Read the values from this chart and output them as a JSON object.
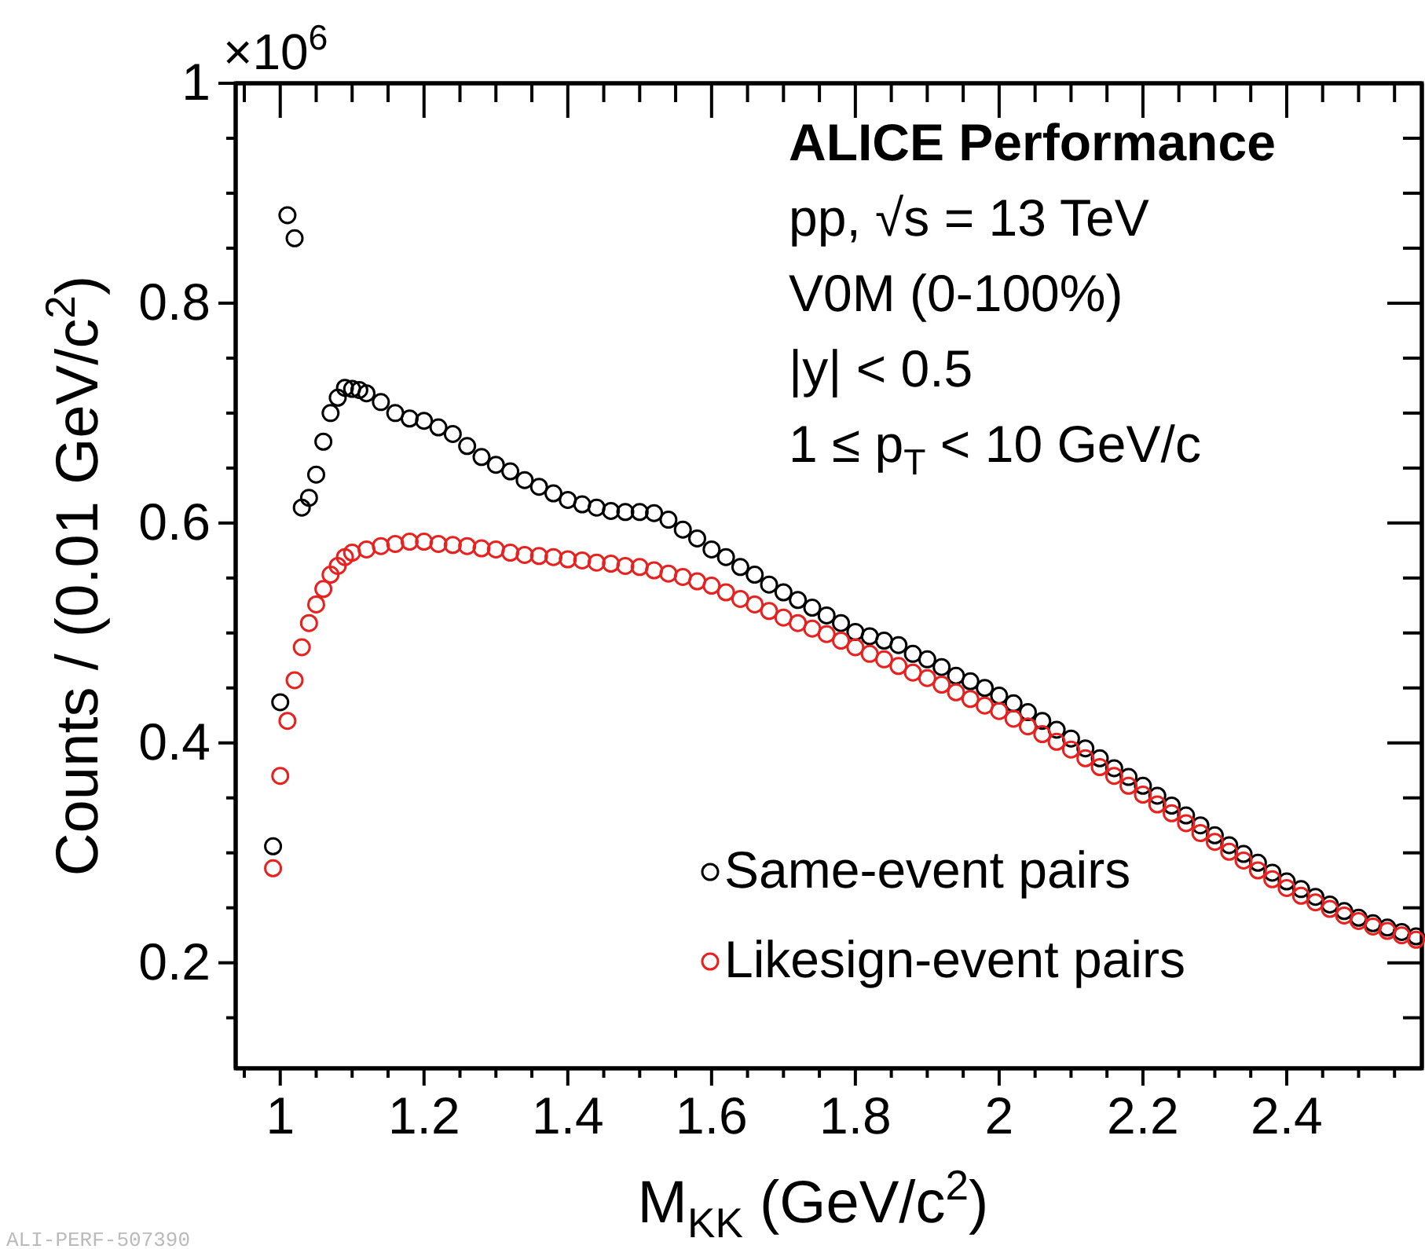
{
  "chart_data": {
    "type": "scatter",
    "xlabel": "M$_{KK}$ (GeV/c$^{2}$)",
    "ylabel": "Counts / (0.01 GeV/c$^{2}$)",
    "xlim": [
      0.938,
      2.588
    ],
    "ylim": [
      0.104,
      1.0
    ],
    "xticks": [
      {
        "value": 0.95,
        "label": null
      },
      1,
      {
        "value": 1.05,
        "label": null
      },
      {
        "value": 1.1,
        "label": null
      },
      {
        "value": 1.15,
        "label": null
      },
      1.2,
      {
        "value": 1.25,
        "label": null
      },
      {
        "value": 1.3,
        "label": null
      },
      {
        "value": 1.35,
        "label": null
      },
      1.4,
      {
        "value": 1.45,
        "label": null
      },
      {
        "value": 1.5,
        "label": null
      },
      {
        "value": 1.55,
        "label": null
      },
      1.6,
      {
        "value": 1.65,
        "label": null
      },
      {
        "value": 1.7,
        "label": null
      },
      {
        "value": 1.75,
        "label": null
      },
      1.8,
      {
        "value": 1.85,
        "label": null
      },
      {
        "value": 1.9,
        "label": null
      },
      {
        "value": 1.95,
        "label": null
      },
      2,
      {
        "value": 2.05,
        "label": null
      },
      {
        "value": 2.1,
        "label": null
      },
      {
        "value": 2.15,
        "label": null
      },
      2.2,
      {
        "value": 2.25,
        "label": null
      },
      {
        "value": 2.3,
        "label": null
      },
      {
        "value": 2.35,
        "label": null
      },
      2.4,
      {
        "value": 2.45,
        "label": null
      },
      {
        "value": 2.5,
        "label": null
      },
      {
        "value": 2.55,
        "label": null
      }
    ],
    "yticks": [
      {
        "value": 0.15,
        "label": null
      },
      0.2,
      {
        "value": 0.25,
        "label": null
      },
      {
        "value": 0.3,
        "label": null
      },
      {
        "value": 0.35,
        "label": null
      },
      0.4,
      {
        "value": 0.45,
        "label": null
      },
      {
        "value": 0.5,
        "label": null
      },
      {
        "value": 0.55,
        "label": null
      },
      0.6,
      {
        "value": 0.65,
        "label": null
      },
      {
        "value": 0.7,
        "label": null
      },
      {
        "value": 0.75,
        "label": null
      },
      0.8,
      {
        "value": 0.85,
        "label": null
      },
      {
        "value": 0.9,
        "label": null
      },
      {
        "value": 0.95,
        "label": null
      },
      1
    ],
    "marker": "circle",
    "legend": "bottom",
    "grid": false,
    "annotations": [
      "×10$^{6}$",
      "ALICE Performance",
      "pp, √s = 13 TeV",
      "V0M (0-100%)",
      "|y| < 0.5",
      "1 ≤ p$_{T}$ < 10 GeV/c",
      "ALI-PERF-507390"
    ],
    "series": [
      {
        "name": "Same-event pairs",
        "color": "#000000",
        "x": [
          0.99,
          1.0,
          1.01,
          1.02,
          1.03,
          1.04,
          1.05,
          1.06,
          1.07,
          1.08,
          1.09,
          1.1,
          1.11,
          1.12,
          1.14,
          1.16,
          1.18,
          1.2,
          1.22,
          1.24,
          1.26,
          1.28,
          1.3,
          1.32,
          1.34,
          1.36,
          1.38,
          1.4,
          1.42,
          1.44,
          1.46,
          1.48,
          1.5,
          1.52,
          1.54,
          1.56,
          1.58,
          1.6,
          1.62,
          1.64,
          1.66,
          1.68,
          1.7,
          1.72,
          1.74,
          1.76,
          1.78,
          1.8,
          1.82,
          1.84,
          1.86,
          1.88,
          1.9,
          1.92,
          1.94,
          1.96,
          1.98,
          2.0,
          2.02,
          2.04,
          2.06,
          2.08,
          2.1,
          2.12,
          2.14,
          2.16,
          2.18,
          2.2,
          2.22,
          2.24,
          2.26,
          2.28,
          2.3,
          2.32,
          2.34,
          2.36,
          2.38,
          2.4,
          2.42,
          2.44,
          2.46,
          2.48,
          2.5,
          2.52,
          2.54,
          2.56,
          2.58
        ],
        "values": [
          0.306,
          0.437,
          0.88,
          0.859,
          0.614,
          0.623,
          0.644,
          0.674,
          0.7,
          0.714,
          0.723,
          0.722,
          0.721,
          0.718,
          0.71,
          0.7,
          0.695,
          0.693,
          0.687,
          0.681,
          0.67,
          0.66,
          0.653,
          0.647,
          0.639,
          0.633,
          0.627,
          0.621,
          0.617,
          0.614,
          0.611,
          0.61,
          0.61,
          0.609,
          0.603,
          0.594,
          0.586,
          0.576,
          0.569,
          0.56,
          0.553,
          0.544,
          0.537,
          0.53,
          0.523,
          0.516,
          0.509,
          0.501,
          0.497,
          0.493,
          0.489,
          0.481,
          0.476,
          0.469,
          0.461,
          0.456,
          0.45,
          0.443,
          0.436,
          0.428,
          0.42,
          0.412,
          0.404,
          0.395,
          0.386,
          0.377,
          0.369,
          0.361,
          0.352,
          0.343,
          0.334,
          0.325,
          0.316,
          0.307,
          0.299,
          0.291,
          0.282,
          0.274,
          0.267,
          0.26,
          0.253,
          0.247,
          0.241,
          0.236,
          0.232,
          0.228,
          0.224
        ]
      },
      {
        "name": "Likesign-event pairs",
        "color": "#e8201e",
        "x": [
          0.99,
          1.0,
          1.01,
          1.02,
          1.03,
          1.04,
          1.05,
          1.06,
          1.07,
          1.08,
          1.09,
          1.1,
          1.12,
          1.14,
          1.16,
          1.18,
          1.2,
          1.22,
          1.24,
          1.26,
          1.28,
          1.3,
          1.32,
          1.34,
          1.36,
          1.38,
          1.4,
          1.42,
          1.44,
          1.46,
          1.48,
          1.5,
          1.52,
          1.54,
          1.56,
          1.58,
          1.6,
          1.62,
          1.64,
          1.66,
          1.68,
          1.7,
          1.72,
          1.74,
          1.76,
          1.78,
          1.8,
          1.82,
          1.84,
          1.86,
          1.88,
          1.9,
          1.92,
          1.94,
          1.96,
          1.98,
          2.0,
          2.02,
          2.04,
          2.06,
          2.08,
          2.1,
          2.12,
          2.14,
          2.16,
          2.18,
          2.2,
          2.22,
          2.24,
          2.26,
          2.28,
          2.3,
          2.32,
          2.34,
          2.36,
          2.38,
          2.4,
          2.42,
          2.44,
          2.46,
          2.48,
          2.5,
          2.52,
          2.54,
          2.56,
          2.58
        ],
        "values": [
          0.286,
          0.37,
          0.42,
          0.457,
          0.487,
          0.509,
          0.526,
          0.54,
          0.553,
          0.561,
          0.569,
          0.573,
          0.576,
          0.579,
          0.581,
          0.583,
          0.583,
          0.581,
          0.58,
          0.579,
          0.577,
          0.576,
          0.573,
          0.571,
          0.57,
          0.569,
          0.567,
          0.566,
          0.564,
          0.563,
          0.561,
          0.56,
          0.557,
          0.554,
          0.551,
          0.547,
          0.543,
          0.537,
          0.531,
          0.526,
          0.52,
          0.514,
          0.509,
          0.504,
          0.499,
          0.493,
          0.487,
          0.481,
          0.476,
          0.47,
          0.464,
          0.459,
          0.453,
          0.446,
          0.44,
          0.434,
          0.429,
          0.422,
          0.415,
          0.408,
          0.401,
          0.394,
          0.386,
          0.378,
          0.37,
          0.361,
          0.353,
          0.344,
          0.336,
          0.327,
          0.318,
          0.31,
          0.301,
          0.293,
          0.284,
          0.276,
          0.268,
          0.261,
          0.255,
          0.249,
          0.243,
          0.238,
          0.233,
          0.229,
          0.225,
          0.221
        ]
      }
    ]
  }
}
